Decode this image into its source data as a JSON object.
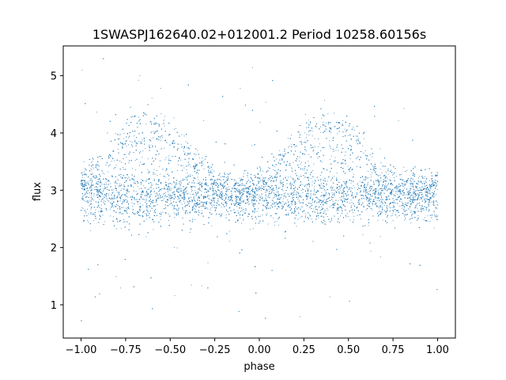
{
  "chart_data": {
    "type": "scatter",
    "title": "1SWASPJ162640.02+012001.2 Period 10258.60156s",
    "xlabel": "phase",
    "ylabel": "flux",
    "xlim": [
      -1.1,
      1.1
    ],
    "ylim": [
      0.42,
      5.52
    ],
    "x_ticks": [
      -1.0,
      -0.75,
      -0.5,
      -0.25,
      0.0,
      0.25,
      0.5,
      0.75,
      1.0
    ],
    "x_tick_labels": [
      "−1.00",
      "−0.75",
      "−0.50",
      "−0.25",
      "0.00",
      "0.25",
      "0.50",
      "0.75",
      "1.00"
    ],
    "y_ticks": [
      1,
      2,
      3,
      4,
      5
    ],
    "y_tick_labels": [
      "1",
      "2",
      "3",
      "4",
      "5"
    ],
    "grid": false,
    "point_color": "#1f77b4",
    "series": [
      {
        "x_range": [
          -1.0,
          1.0
        ],
        "baseline_flux": 2.85,
        "baseline_spread": 0.22,
        "bright_branch": {
          "peak_flux": 4.3,
          "peak_phases": [
            -0.62,
            0.38
          ],
          "min_phases": [
            -0.12,
            0.88
          ],
          "min_flux": 3.05
        },
        "outlier_flux_range": [
          0.7,
          5.3
        ]
      }
    ]
  }
}
